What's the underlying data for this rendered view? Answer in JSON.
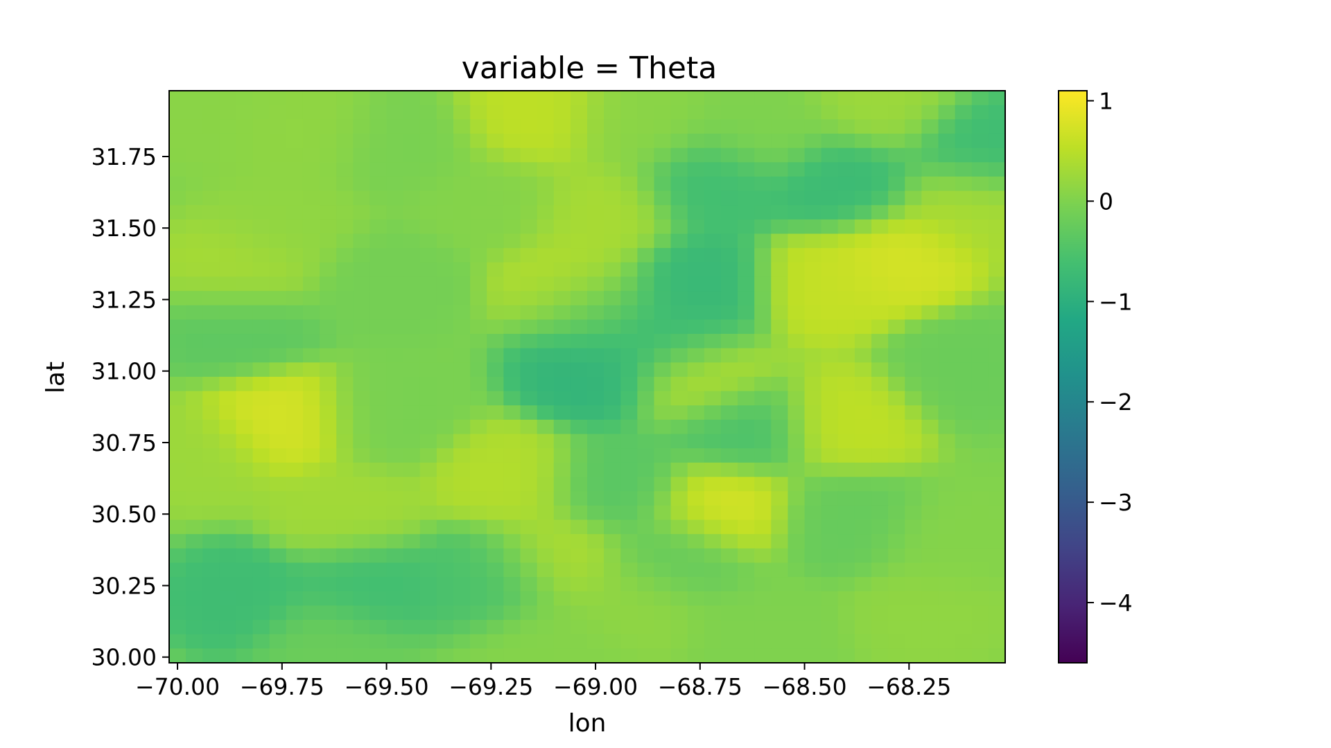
{
  "chart_data": {
    "type": "heatmap",
    "title": "variable = Theta",
    "xlabel": "lon",
    "ylabel": "lat",
    "x_ticks": [
      -70.0,
      -69.75,
      -69.5,
      -69.25,
      -69.0,
      -68.75,
      -68.5,
      -68.25
    ],
    "x_tick_labels": [
      "−70.00",
      "−69.75",
      "−69.50",
      "−69.25",
      "−69.00",
      "−68.75",
      "−68.50",
      "−68.25"
    ],
    "y_ticks": [
      30.0,
      30.25,
      30.5,
      30.75,
      31.0,
      31.25,
      31.5,
      31.75
    ],
    "y_tick_labels": [
      "30.00",
      "30.25",
      "30.50",
      "30.75",
      "31.00",
      "31.25",
      "31.50",
      "31.75"
    ],
    "xlim": [
      -70.02,
      -68.02
    ],
    "ylim": [
      29.98,
      31.98
    ],
    "colormap": "viridis",
    "colorbar": {
      "range": [
        -4.6,
        1.1
      ],
      "ticks": [
        1,
        0,
        -1,
        -2,
        -3,
        -4
      ],
      "tick_labels": [
        "1",
        "0",
        "−1",
        "−2",
        "−3",
        "−4"
      ]
    },
    "grid": false,
    "grid_size": {
      "cols": 50,
      "rows": 40
    },
    "anchors": [
      {
        "lon": -69.92,
        "lat": 31.9,
        "value": 0.1
      },
      {
        "lon": -69.7,
        "lat": 31.85,
        "value": 0.15
      },
      {
        "lon": -69.45,
        "lat": 31.8,
        "value": -0.05
      },
      {
        "lon": -69.15,
        "lat": 31.88,
        "value": 0.55
      },
      {
        "lon": -68.9,
        "lat": 31.85,
        "value": 0.1
      },
      {
        "lon": -68.6,
        "lat": 31.85,
        "value": 0.0
      },
      {
        "lon": -68.3,
        "lat": 31.93,
        "value": 0.25
      },
      {
        "lon": -68.08,
        "lat": 31.78,
        "value": -0.7
      },
      {
        "lon": -69.25,
        "lat": 31.6,
        "value": 0.05
      },
      {
        "lon": -68.98,
        "lat": 31.55,
        "value": 0.35
      },
      {
        "lon": -68.72,
        "lat": 31.65,
        "value": -0.65
      },
      {
        "lon": -68.4,
        "lat": 31.65,
        "value": -0.75
      },
      {
        "lon": -68.12,
        "lat": 31.58,
        "value": 0.35
      },
      {
        "lon": -68.28,
        "lat": 31.4,
        "value": 0.75
      },
      {
        "lon": -68.45,
        "lat": 31.3,
        "value": 0.6
      },
      {
        "lon": -68.75,
        "lat": 31.3,
        "value": -0.8
      },
      {
        "lon": -68.82,
        "lat": 31.12,
        "value": -0.75
      },
      {
        "lon": -68.98,
        "lat": 31.2,
        "value": -0.45
      },
      {
        "lon": -69.05,
        "lat": 31.3,
        "value": 0.45
      },
      {
        "lon": -69.0,
        "lat": 31.0,
        "value": -0.9
      },
      {
        "lon": -68.75,
        "lat": 30.98,
        "value": 0.5
      },
      {
        "lon": -68.65,
        "lat": 30.8,
        "value": -0.55
      },
      {
        "lon": -68.4,
        "lat": 30.82,
        "value": 0.55
      },
      {
        "lon": -68.12,
        "lat": 31.0,
        "value": -0.2
      },
      {
        "lon": -69.5,
        "lat": 31.3,
        "value": -0.1
      },
      {
        "lon": -69.85,
        "lat": 31.15,
        "value": -0.35
      },
      {
        "lon": -69.75,
        "lat": 31.5,
        "value": 0.15
      },
      {
        "lon": -69.85,
        "lat": 31.35,
        "value": 0.35
      },
      {
        "lon": -69.75,
        "lat": 30.83,
        "value": 0.75
      },
      {
        "lon": -69.95,
        "lat": 30.7,
        "value": 0.25
      },
      {
        "lon": -69.5,
        "lat": 30.85,
        "value": -0.05
      },
      {
        "lon": -69.2,
        "lat": 30.62,
        "value": 0.45
      },
      {
        "lon": -68.95,
        "lat": 30.6,
        "value": -0.4
      },
      {
        "lon": -68.7,
        "lat": 30.52,
        "value": 0.75
      },
      {
        "lon": -68.8,
        "lat": 30.35,
        "value": -0.3
      },
      {
        "lon": -68.4,
        "lat": 30.48,
        "value": -0.25
      },
      {
        "lon": -68.15,
        "lat": 30.4,
        "value": 0.05
      },
      {
        "lon": -69.55,
        "lat": 30.25,
        "value": -0.65
      },
      {
        "lon": -69.85,
        "lat": 30.2,
        "value": -0.7
      },
      {
        "lon": -69.25,
        "lat": 30.28,
        "value": -0.55
      },
      {
        "lon": -69.1,
        "lat": 30.35,
        "value": 0.4
      },
      {
        "lon": -68.9,
        "lat": 30.2,
        "value": 0.15
      },
      {
        "lon": -69.6,
        "lat": 30.5,
        "value": 0.3
      },
      {
        "lon": -69.65,
        "lat": 30.05,
        "value": -0.2
      },
      {
        "lon": -69.1,
        "lat": 30.05,
        "value": 0.05
      },
      {
        "lon": -68.6,
        "lat": 30.1,
        "value": 0.0
      },
      {
        "lon": -68.2,
        "lat": 30.15,
        "value": 0.15
      }
    ]
  }
}
